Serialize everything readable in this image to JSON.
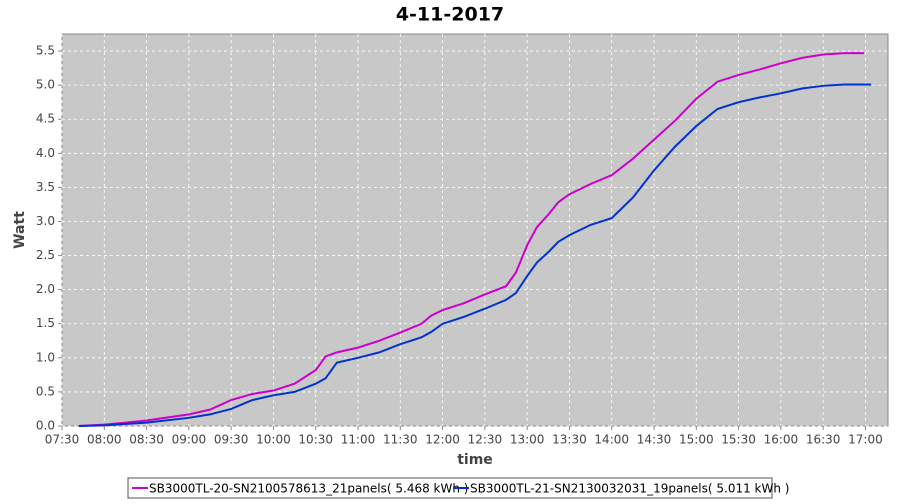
{
  "chart_data": {
    "type": "line",
    "title": "4-11-2017",
    "x_label": "time",
    "y_label": "Watt",
    "x": [
      462,
      480,
      510,
      540,
      555,
      570,
      585,
      600,
      615,
      630,
      637,
      645,
      660,
      675,
      690,
      705,
      712,
      720,
      735,
      750,
      765,
      772,
      780,
      787,
      795,
      802,
      810,
      825,
      840,
      855,
      870,
      885,
      900,
      915,
      930,
      945,
      960,
      975,
      990,
      1005,
      1019,
      1024
    ],
    "series": [
      {
        "name": "SB3000TL-20-SN2100578613_21panels( 5.468 kWh )",
        "color": "#cc00cc",
        "values": [
          0,
          0.02,
          0.08,
          0.17,
          0.24,
          0.38,
          0.47,
          0.52,
          0.62,
          0.82,
          1.02,
          1.08,
          1.15,
          1.25,
          1.37,
          1.5,
          1.62,
          1.7,
          1.8,
          1.93,
          2.05,
          2.25,
          2.65,
          2.92,
          3.1,
          3.28,
          3.4,
          3.55,
          3.68,
          3.92,
          4.2,
          4.48,
          4.8,
          5.05,
          5.15,
          5.23,
          5.32,
          5.4,
          5.45,
          5.47,
          5.47,
          null
        ]
      },
      {
        "name": "SB3000TL-21-SN2130032031_19panels( 5.011 kWh )",
        "color": "#0033cc",
        "values": [
          0,
          0.01,
          0.05,
          0.12,
          0.17,
          0.25,
          0.38,
          0.45,
          0.5,
          0.62,
          0.7,
          0.93,
          1.0,
          1.08,
          1.2,
          1.3,
          1.38,
          1.5,
          1.6,
          1.72,
          1.85,
          1.95,
          2.2,
          2.4,
          2.55,
          2.7,
          2.8,
          2.95,
          3.05,
          3.35,
          3.75,
          4.1,
          4.4,
          4.65,
          4.75,
          4.82,
          4.88,
          4.95,
          4.99,
          5.01,
          5.01,
          5.01
        ]
      }
    ],
    "xlim": [
      450,
      1036
    ],
    "xticks": [
      {
        "value": 450,
        "label": "07:30"
      },
      {
        "value": 480,
        "label": "08:00"
      },
      {
        "value": 510,
        "label": "08:30"
      },
      {
        "value": 540,
        "label": "09:00"
      },
      {
        "value": 570,
        "label": "09:30"
      },
      {
        "value": 600,
        "label": "10:00"
      },
      {
        "value": 630,
        "label": "10:30"
      },
      {
        "value": 660,
        "label": "11:00"
      },
      {
        "value": 690,
        "label": "11:30"
      },
      {
        "value": 720,
        "label": "12:00"
      },
      {
        "value": 750,
        "label": "12:30"
      },
      {
        "value": 780,
        "label": "13:00"
      },
      {
        "value": 810,
        "label": "13:30"
      },
      {
        "value": 840,
        "label": "14:00"
      },
      {
        "value": 870,
        "label": "14:30"
      },
      {
        "value": 900,
        "label": "15:00"
      },
      {
        "value": 930,
        "label": "15:30"
      },
      {
        "value": 960,
        "label": "16:00"
      },
      {
        "value": 990,
        "label": "16:30"
      },
      {
        "value": 1020,
        "label": "17:00"
      }
    ],
    "ylim": [
      0,
      5.75
    ],
    "yticks": [
      {
        "value": 0,
        "label": "0.0"
      },
      0.5,
      {
        "value": 1,
        "label": "1.0"
      },
      1.5,
      {
        "value": 2,
        "label": "2.0"
      },
      2.5,
      {
        "value": 3,
        "label": "3.0"
      },
      3.5,
      {
        "value": 4,
        "label": "4.0"
      },
      4.5,
      {
        "value": 5,
        "label": "5.0"
      },
      5.5
    ],
    "grid": true
  }
}
